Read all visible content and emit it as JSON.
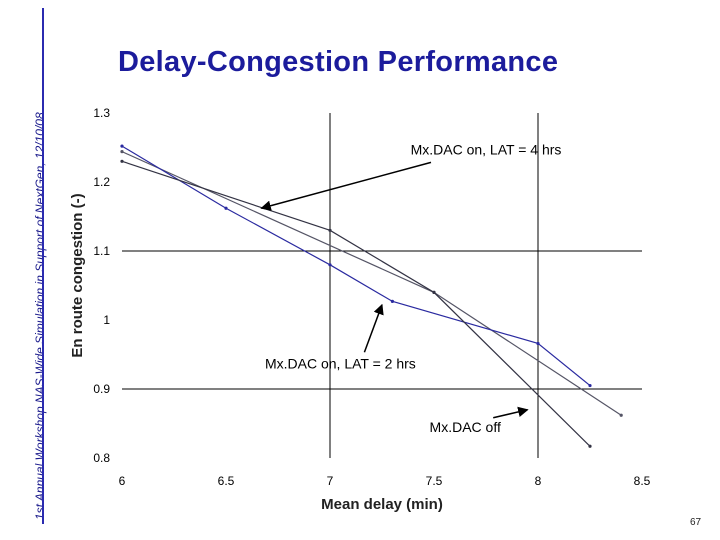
{
  "side_caption": "1st Annual Workshop NAS-Wide Simulation in Support of NextGen, 12/10/08",
  "title": "Delay-Congestion Performance",
  "page_number": "67",
  "chart_data": {
    "type": "line",
    "xlabel": "Mean delay (min)",
    "ylabel": "En route congestion (-)",
    "xlim": [
      6,
      8.5
    ],
    "ylim": [
      0.8,
      1.3
    ],
    "xticks": [
      "6",
      "6.5",
      "7",
      "7.5",
      "8",
      "8.5"
    ],
    "yticks": [
      "0.8",
      "0.9",
      "1",
      "1.1",
      "1.2",
      "1.3"
    ],
    "grid": true,
    "series": [
      {
        "name": "Mx.DAC on, LAT = 4 hrs",
        "color": "#555566",
        "x": [
          6.0,
          7.5,
          8.4
        ],
        "y": [
          1.244,
          1.04,
          0.862
        ]
      },
      {
        "name": "Mx.DAC on, LAT = 2 hrs",
        "color": "#2a2aa0",
        "x": [
          6.0,
          6.5,
          7.0,
          7.3,
          8.0,
          8.25
        ],
        "y": [
          1.252,
          1.162,
          1.08,
          1.027,
          0.966,
          0.905
        ]
      },
      {
        "name": "Mx.DAC off",
        "color": "#333344",
        "x": [
          6.0,
          7.0,
          7.5,
          8.25
        ],
        "y": [
          1.23,
          1.13,
          1.04,
          0.817
        ]
      }
    ],
    "annotations": [
      {
        "text": "Mx.DAC on, LAT = 4 hrs",
        "x": 7.75,
        "y": 1.24,
        "arrow_to": [
          6.67,
          1.162
        ]
      },
      {
        "text": "Mx.DAC on, LAT = 2 hrs",
        "x": 7.05,
        "y": 0.93,
        "arrow_to": [
          7.25,
          1.022
        ]
      },
      {
        "text": "Mx.DAC off",
        "x": 7.65,
        "y": 0.838,
        "arrow_to": [
          7.95,
          0.87
        ]
      }
    ]
  }
}
